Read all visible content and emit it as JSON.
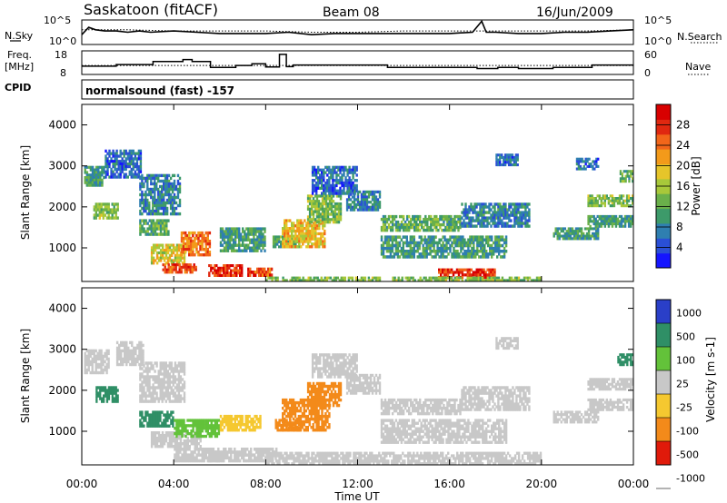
{
  "header": {
    "station": "Saskatoon (fitACF)",
    "beam": "Beam 08",
    "date": "16/Jun/2009"
  },
  "left_labels": {
    "nsky": "N.Sky",
    "freq_line1": "Freq.",
    "freq_line2": "[MHz]",
    "cpid": "CPID"
  },
  "right_labels": {
    "nsearch": "N.Search",
    "nave": "Nave"
  },
  "cpid_text": "normalsound (fast) -157",
  "chart_data": [
    {
      "type": "line",
      "panel": "noise",
      "left_ticks": [
        "10^5",
        "10^0"
      ],
      "right_ticks": [
        "10^5",
        "10^0"
      ],
      "series": [
        {
          "name": "N.Sky",
          "style": "solid",
          "x": [
            0,
            0.3,
            0.6,
            1.0,
            1.5,
            2.0,
            2.5,
            3.0,
            4.0,
            5.0,
            6.0,
            7.0,
            8.0,
            9.0,
            10.0,
            11.0,
            12.0,
            13.0,
            14.0,
            15.0,
            16.0,
            17.0,
            17.4,
            17.6,
            18.0,
            19.0,
            20.0,
            21.0,
            22.0,
            23.0,
            24.0
          ],
          "y": [
            0.4,
            0.7,
            0.6,
            0.55,
            0.55,
            0.5,
            0.55,
            0.5,
            0.55,
            0.5,
            0.45,
            0.45,
            0.45,
            0.5,
            0.4,
            0.45,
            0.45,
            0.45,
            0.45,
            0.45,
            0.45,
            0.5,
            0.95,
            0.5,
            0.5,
            0.45,
            0.45,
            0.5,
            0.5,
            0.55,
            0.6
          ]
        },
        {
          "name": "N.Search",
          "style": "dotted",
          "x": [
            0,
            2,
            4,
            6,
            8,
            10,
            12,
            14,
            16,
            18,
            20,
            22,
            24
          ],
          "y": [
            0.6,
            0.6,
            0.55,
            0.55,
            0.55,
            0.5,
            0.5,
            0.55,
            0.55,
            0.55,
            0.55,
            0.55,
            0.6
          ]
        }
      ]
    },
    {
      "type": "line",
      "panel": "frequency",
      "left_ticks": [
        "18",
        "8"
      ],
      "right_ticks": [
        "60",
        "0"
      ],
      "series": [
        {
          "name": "Freq.",
          "style": "solid",
          "x": [
            0,
            1.5,
            1.5,
            3.1,
            3.1,
            4.4,
            4.4,
            4.8,
            4.8,
            5.6,
            5.6,
            6.7,
            6.7,
            7.4,
            7.4,
            8.0,
            8.0,
            8.6,
            8.6,
            8.9,
            8.9,
            9.2,
            9.2,
            13.3,
            13.3,
            17.2,
            17.2,
            18.1,
            18.1,
            19.0,
            19.0,
            20.5,
            20.5,
            22.2,
            22.2,
            24.0
          ],
          "y": [
            11.5,
            11.5,
            12.2,
            12.2,
            13.5,
            13.5,
            14.3,
            14.3,
            13.5,
            13.5,
            11.0,
            11.0,
            11.8,
            11.8,
            12.5,
            12.5,
            11.2,
            11.2,
            16.5,
            16.5,
            11.3,
            11.3,
            12.0,
            12.0,
            11.0,
            11.0,
            10.5,
            10.5,
            11.0,
            11.0,
            10.5,
            10.5,
            11.0,
            11.0,
            12.0,
            12.0
          ]
        },
        {
          "name": "Nave",
          "style": "dotted",
          "x": [
            0,
            24
          ],
          "y": [
            11.8,
            11.8
          ]
        }
      ]
    },
    {
      "type": "heatmap",
      "panel": "power",
      "xlabel": "",
      "ylabel": "Slant Range [km]",
      "xlim": [
        0,
        24
      ],
      "ylim": [
        180,
        4500
      ],
      "xticks": [
        0,
        4,
        8,
        12,
        16,
        20,
        24
      ],
      "yticks": [
        1000,
        2000,
        3000,
        4000
      ],
      "colorbar": {
        "label": "Power [dB]",
        "range": [
          0,
          32
        ],
        "ticks": [
          4,
          8,
          12,
          16,
          20,
          24,
          28
        ],
        "colors": [
          "#1515ff",
          "#2a4fd6",
          "#2f7fb0",
          "#3d9a6a",
          "#6ab04a",
          "#a8c83a",
          "#e6c52a",
          "#f39a1a",
          "#f2661a",
          "#e02810",
          "#d80000"
        ]
      },
      "regions": [
        {
          "x": [
            0.1,
            1.0
          ],
          "y": [
            2500,
            3000
          ],
          "v": 10
        },
        {
          "x": [
            0.5,
            1.6
          ],
          "y": [
            1700,
            2100
          ],
          "v": 14
        },
        {
          "x": [
            1.0,
            2.6
          ],
          "y": [
            2700,
            3400
          ],
          "v": 6
        },
        {
          "x": [
            2.5,
            4.3
          ],
          "y": [
            1800,
            2800
          ],
          "v": 8
        },
        {
          "x": [
            2.5,
            3.8
          ],
          "y": [
            1300,
            1700
          ],
          "v": 12
        },
        {
          "x": [
            3.0,
            4.5
          ],
          "y": [
            600,
            1100
          ],
          "v": 18
        },
        {
          "x": [
            3.5,
            5.0
          ],
          "y": [
            380,
            620
          ],
          "v": 26
        },
        {
          "x": [
            4.3,
            5.6
          ],
          "y": [
            800,
            1400
          ],
          "v": 24
        },
        {
          "x": [
            5.5,
            7.0
          ],
          "y": [
            300,
            600
          ],
          "v": 28
        },
        {
          "x": [
            6.0,
            8.0
          ],
          "y": [
            900,
            1500
          ],
          "v": 10
        },
        {
          "x": [
            7.2,
            8.3
          ],
          "y": [
            300,
            520
          ],
          "v": 26
        },
        {
          "x": [
            8.3,
            9.5
          ],
          "y": [
            1000,
            1300
          ],
          "v": 12
        },
        {
          "x": [
            8.7,
            10.6
          ],
          "y": [
            1000,
            1700
          ],
          "v": 20
        },
        {
          "x": [
            9.8,
            11.3
          ],
          "y": [
            1600,
            2300
          ],
          "v": 14
        },
        {
          "x": [
            10.0,
            12.0
          ],
          "y": [
            2300,
            3000
          ],
          "v": 6
        },
        {
          "x": [
            11.5,
            13.0
          ],
          "y": [
            1900,
            2400
          ],
          "v": 8
        },
        {
          "x": [
            13.0,
            16.5
          ],
          "y": [
            1400,
            1800
          ],
          "v": 12
        },
        {
          "x": [
            13.0,
            18.5
          ],
          "y": [
            750,
            1300
          ],
          "v": 10
        },
        {
          "x": [
            15.5,
            18.0
          ],
          "y": [
            250,
            500
          ],
          "v": 28
        },
        {
          "x": [
            13.5,
            20.0
          ],
          "y": [
            180,
            300
          ],
          "v": 14
        },
        {
          "x": [
            8.0,
            13.0
          ],
          "y": [
            180,
            300
          ],
          "v": 14
        },
        {
          "x": [
            16.5,
            19.5
          ],
          "y": [
            1500,
            2100
          ],
          "v": 8
        },
        {
          "x": [
            18.0,
            19.0
          ],
          "y": [
            3000,
            3300
          ],
          "v": 6
        },
        {
          "x": [
            20.5,
            22.5
          ],
          "y": [
            1200,
            1500
          ],
          "v": 10
        },
        {
          "x": [
            22.0,
            24.0
          ],
          "y": [
            2000,
            2300
          ],
          "v": 14
        },
        {
          "x": [
            22.0,
            24.0
          ],
          "y": [
            1500,
            1800
          ],
          "v": 10
        },
        {
          "x": [
            23.4,
            24.0
          ],
          "y": [
            2600,
            2900
          ],
          "v": 12
        },
        {
          "x": [
            21.5,
            22.5
          ],
          "y": [
            2900,
            3200
          ],
          "v": 6
        }
      ]
    },
    {
      "type": "heatmap",
      "panel": "velocity",
      "xlabel": "Time UT",
      "ylabel": "Slant Range [km]",
      "xlim": [
        0,
        24
      ],
      "ylim": [
        180,
        4500
      ],
      "xticks": [
        0,
        4,
        8,
        12,
        16,
        20,
        24
      ],
      "xticklabels": [
        "00:00",
        "04:00",
        "08:00",
        "12:00",
        "16:00",
        "20:00",
        "00:00"
      ],
      "yticks": [
        1000,
        2000,
        3000,
        4000
      ],
      "colorbar": {
        "label": "Velocity [m s-1]",
        "range": [
          -1100,
          1100
        ],
        "ticklabels": [
          "1000",
          "500",
          "100",
          "25",
          "-25",
          "-100",
          "-500",
          "-1000"
        ],
        "bands": [
          {
            "from": 500,
            "to": 1100,
            "color": "#2a3fc8"
          },
          {
            "from": 100,
            "to": 500,
            "color": "#2f8f66"
          },
          {
            "from": 25,
            "to": 100,
            "color": "#63c23a"
          },
          {
            "from": -25,
            "to": 25,
            "color": "#c8c8c8"
          },
          {
            "from": -100,
            "to": -25,
            "color": "#f5c830"
          },
          {
            "from": -500,
            "to": -100,
            "color": "#f38a1a"
          },
          {
            "from": -1100,
            "to": -500,
            "color": "#e01a0a"
          }
        ]
      },
      "regions": [
        {
          "x": [
            0.1,
            1.2
          ],
          "y": [
            2400,
            3000
          ],
          "v": 0
        },
        {
          "x": [
            0.6,
            1.6
          ],
          "y": [
            1700,
            2100
          ],
          "v": 150
        },
        {
          "x": [
            1.5,
            2.7
          ],
          "y": [
            2600,
            3200
          ],
          "v": 0
        },
        {
          "x": [
            2.5,
            4.5
          ],
          "y": [
            1700,
            2700
          ],
          "v": 0
        },
        {
          "x": [
            2.5,
            4.0
          ],
          "y": [
            1100,
            1500
          ],
          "v": 200
        },
        {
          "x": [
            3.0,
            5.2
          ],
          "y": [
            600,
            1000
          ],
          "v": 0
        },
        {
          "x": [
            4.0,
            6.0
          ],
          "y": [
            850,
            1300
          ],
          "v": 60
        },
        {
          "x": [
            4.0,
            6.0
          ],
          "y": [
            250,
            600
          ],
          "v": 0
        },
        {
          "x": [
            5.5,
            8.5
          ],
          "y": [
            250,
            600
          ],
          "v": 0
        },
        {
          "x": [
            6.0,
            7.8
          ],
          "y": [
            1000,
            1400
          ],
          "v": -60
        },
        {
          "x": [
            8.4,
            9.5
          ],
          "y": [
            1000,
            1300
          ],
          "v": -200
        },
        {
          "x": [
            8.7,
            10.8
          ],
          "y": [
            1000,
            1800
          ],
          "v": -250
        },
        {
          "x": [
            9.8,
            11.3
          ],
          "y": [
            1600,
            2200
          ],
          "v": -200
        },
        {
          "x": [
            10.0,
            12.0
          ],
          "y": [
            2300,
            2900
          ],
          "v": 0
        },
        {
          "x": [
            11.5,
            13.0
          ],
          "y": [
            1900,
            2400
          ],
          "v": 0
        },
        {
          "x": [
            13.0,
            16.5
          ],
          "y": [
            1400,
            1800
          ],
          "v": 0
        },
        {
          "x": [
            13.0,
            18.5
          ],
          "y": [
            700,
            1300
          ],
          "v": 0
        },
        {
          "x": [
            8.0,
            20.0
          ],
          "y": [
            180,
            500
          ],
          "v": 0
        },
        {
          "x": [
            16.5,
            19.5
          ],
          "y": [
            1500,
            2100
          ],
          "v": 0
        },
        {
          "x": [
            20.5,
            22.5
          ],
          "y": [
            1200,
            1500
          ],
          "v": 0
        },
        {
          "x": [
            22.0,
            24.0
          ],
          "y": [
            2000,
            2300
          ],
          "v": 0
        },
        {
          "x": [
            22.0,
            24.0
          ],
          "y": [
            1500,
            1800
          ],
          "v": 0
        },
        {
          "x": [
            23.3,
            24.0
          ],
          "y": [
            2600,
            2900
          ],
          "v": 150
        },
        {
          "x": [
            18.0,
            19.0
          ],
          "y": [
            3000,
            3300
          ],
          "v": 0
        }
      ]
    }
  ]
}
